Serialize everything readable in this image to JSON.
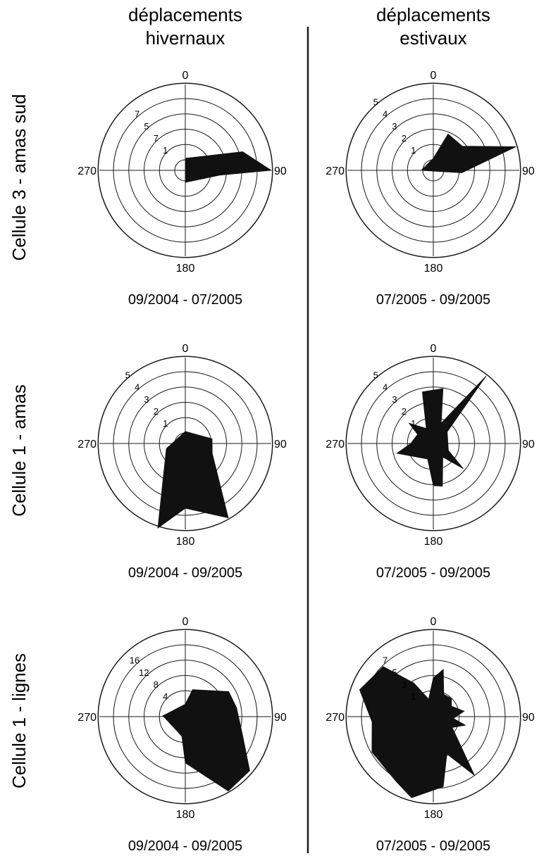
{
  "columns": [
    {
      "line1": "déplacements",
      "line2": "hivernaux"
    },
    {
      "line1": "déplacements",
      "line2": "estivaux"
    }
  ],
  "rows": [
    {
      "label": "Cellule 3 - amas sud"
    },
    {
      "label": "Cellule 1 - amas"
    },
    {
      "label": "Cellule 1 - lignes"
    }
  ],
  "direction_labels": {
    "north": "0",
    "east": "90",
    "south": "180",
    "west": "270"
  },
  "chart_data": [
    {
      "type": "rose",
      "row": 0,
      "col": 0,
      "period": "09/2004 - 07/2005",
      "ring_labels": [
        "1",
        "7",
        "5",
        "7"
      ],
      "rmax": 5,
      "grid": true,
      "polygon": [
        {
          "angle": 0,
          "radius": 0.1
        },
        {
          "angle": 72,
          "radius": 3.3
        },
        {
          "angle": 90,
          "radius": 5.0
        },
        {
          "angle": 98,
          "radius": 1.6
        },
        {
          "angle": 180,
          "radius": 0.1
        }
      ]
    },
    {
      "type": "rose",
      "row": 0,
      "col": 1,
      "period": "07/2005 - 09/2005",
      "ring_labels": [
        "1",
        "2",
        "3",
        "4",
        "5"
      ],
      "rmax": 5,
      "grid": true,
      "polygon": [
        {
          "angle": 0,
          "radius": 0.1
        },
        {
          "angle": 22,
          "radius": 1.9
        },
        {
          "angle": 50,
          "radius": 1.8
        },
        {
          "angle": 74,
          "radius": 5.0
        },
        {
          "angle": 95,
          "radius": 1.2
        },
        {
          "angle": 270,
          "radius": 0.1
        }
      ]
    },
    {
      "type": "rose",
      "row": 1,
      "col": 0,
      "period": "09/2004 - 09/2005",
      "ring_labels": [
        "1",
        "2",
        "3",
        "4",
        "5"
      ],
      "rmax": 5,
      "grid": true,
      "polygon": [
        {
          "angle": 0,
          "radius": 0.1
        },
        {
          "angle": 80,
          "radius": 1.1
        },
        {
          "angle": 110,
          "radius": 1.2
        },
        {
          "angle": 150,
          "radius": 5.0
        },
        {
          "angle": 180,
          "radius": 3.6
        },
        {
          "angle": 198,
          "radius": 5.2
        },
        {
          "angle": 255,
          "radius": 0.6
        }
      ]
    },
    {
      "type": "rose",
      "row": 1,
      "col": 1,
      "period": "07/2005 - 09/2005",
      "ring_labels": [
        "1",
        "2",
        "3",
        "4",
        "5"
      ],
      "rmax": 5,
      "grid": true,
      "polygon": [
        {
          "angle": 0,
          "radius": 0.1
        },
        {
          "angle": 38,
          "radius": 5.0
        },
        {
          "angle": 50,
          "radius": 0.5
        },
        {
          "angle": 115,
          "radius": 0.4
        },
        {
          "angle": 130,
          "radius": 1.9
        },
        {
          "angle": 145,
          "radius": 0.4
        },
        {
          "angle": 168,
          "radius": 2.2
        },
        {
          "angle": 180,
          "radius": 2.1
        },
        {
          "angle": 200,
          "radius": 0.4
        },
        {
          "angle": 255,
          "radius": 1.8
        },
        {
          "angle": 270,
          "radius": 0.8
        },
        {
          "angle": 300,
          "radius": 0.5
        },
        {
          "angle": 310,
          "radius": 1.4
        },
        {
          "angle": 335,
          "radius": 0.4
        },
        {
          "angle": 348,
          "radius": 2.8
        },
        {
          "angle": 10,
          "radius": 3.0
        },
        {
          "angle": 25,
          "radius": 0.5
        }
      ]
    },
    {
      "type": "rose",
      "row": 2,
      "col": 0,
      "period": "09/2004 - 09/2005",
      "ring_labels": [
        "4",
        "8",
        "12",
        "16"
      ],
      "rmax": 20,
      "grid": true,
      "polygon": [
        {
          "angle": 0,
          "radius": 0.5
        },
        {
          "angle": 15,
          "radius": 4.6
        },
        {
          "angle": 60,
          "radius": 10.5
        },
        {
          "angle": 80,
          "radius": 11.0
        },
        {
          "angle": 110,
          "radius": 13.5
        },
        {
          "angle": 130,
          "radius": 19.5
        },
        {
          "angle": 150,
          "radius": 20.0
        },
        {
          "angle": 180,
          "radius": 9.5
        },
        {
          "angle": 190,
          "radius": 2.5
        },
        {
          "angle": 265,
          "radius": 2.5
        },
        {
          "angle": 272,
          "radius": 3.2
        },
        {
          "angle": 280,
          "radius": 2.0
        }
      ]
    },
    {
      "type": "rose",
      "row": 2,
      "col": 1,
      "period": "07/2005 - 09/2005",
      "ring_labels": [
        "1",
        "3",
        "5",
        "7"
      ],
      "rmax": 8,
      "grid": true,
      "polygon": [
        {
          "angle": 0,
          "radius": 3.0
        },
        {
          "angle": 12,
          "radius": 4.0
        },
        {
          "angle": 25,
          "radius": 1.5
        },
        {
          "angle": 45,
          "radius": 1.6
        },
        {
          "angle": 60,
          "radius": 1.1
        },
        {
          "angle": 80,
          "radius": 2.2
        },
        {
          "angle": 95,
          "radius": 1.0
        },
        {
          "angle": 105,
          "radius": 2.4
        },
        {
          "angle": 120,
          "radius": 1.2
        },
        {
          "angle": 145,
          "radius": 6.5
        },
        {
          "angle": 160,
          "radius": 3.1
        },
        {
          "angle": 172,
          "radius": 6.4
        },
        {
          "angle": 195,
          "radius": 7.8
        },
        {
          "angle": 210,
          "radius": 6.8
        },
        {
          "angle": 240,
          "radius": 6.4
        },
        {
          "angle": 265,
          "radius": 5.4
        },
        {
          "angle": 290,
          "radius": 7.2
        },
        {
          "angle": 315,
          "radius": 6.4
        },
        {
          "angle": 330,
          "radius": 3.0
        },
        {
          "angle": 345,
          "radius": 0.8
        }
      ]
    }
  ]
}
